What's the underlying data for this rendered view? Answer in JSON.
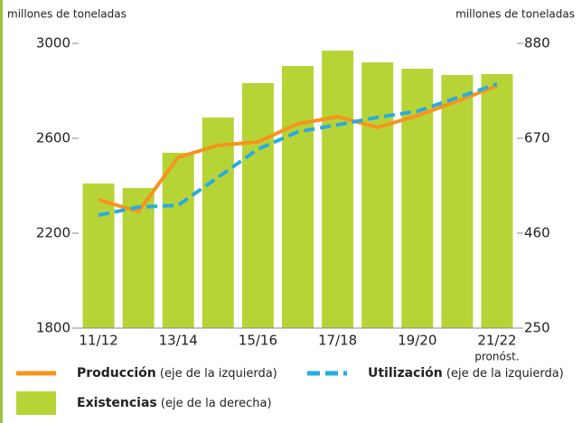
{
  "chart_data": {
    "type": "bar-line",
    "ylabel": "millones de toneladas",
    "y2label": "millones de toneladas",
    "categories": [
      "11/12",
      null,
      "13/14",
      null,
      "15/16",
      null,
      "17/18",
      null,
      "19/20",
      null,
      "21/22"
    ],
    "annotation": "pronóst.",
    "ylim": [
      1800,
      3000
    ],
    "yticks": [
      1800,
      2200,
      2600,
      3000
    ],
    "y2lim": [
      250,
      880
    ],
    "y2ticks": [
      250,
      460,
      670,
      880
    ],
    "series": [
      {
        "name": "Existencias",
        "legend_note": " (eje de la derecha)",
        "type": "bar",
        "axis": "y2",
        "color": "#b7d436",
        "values": [
          570,
          560,
          638,
          716,
          792,
          830,
          864,
          838,
          824,
          810,
          812
        ]
      },
      {
        "name": "Producción",
        "legend_note": " (eje de la izquierda)",
        "type": "line",
        "axis": "y",
        "color": "#f7941d",
        "values": [
          2341,
          2291,
          2520,
          2570,
          2585,
          2661,
          2691,
          2646,
          2695,
          2756,
          2821
        ]
      },
      {
        "name": "Utilización",
        "legend_note": " (eje de la izquierda)",
        "type": "line",
        "dashed": true,
        "axis": "y",
        "color": "#29abe2",
        "values": [
          2276,
          2310,
          2318,
          2436,
          2554,
          2627,
          2657,
          2688,
          2714,
          2771,
          2829
        ]
      }
    ]
  }
}
